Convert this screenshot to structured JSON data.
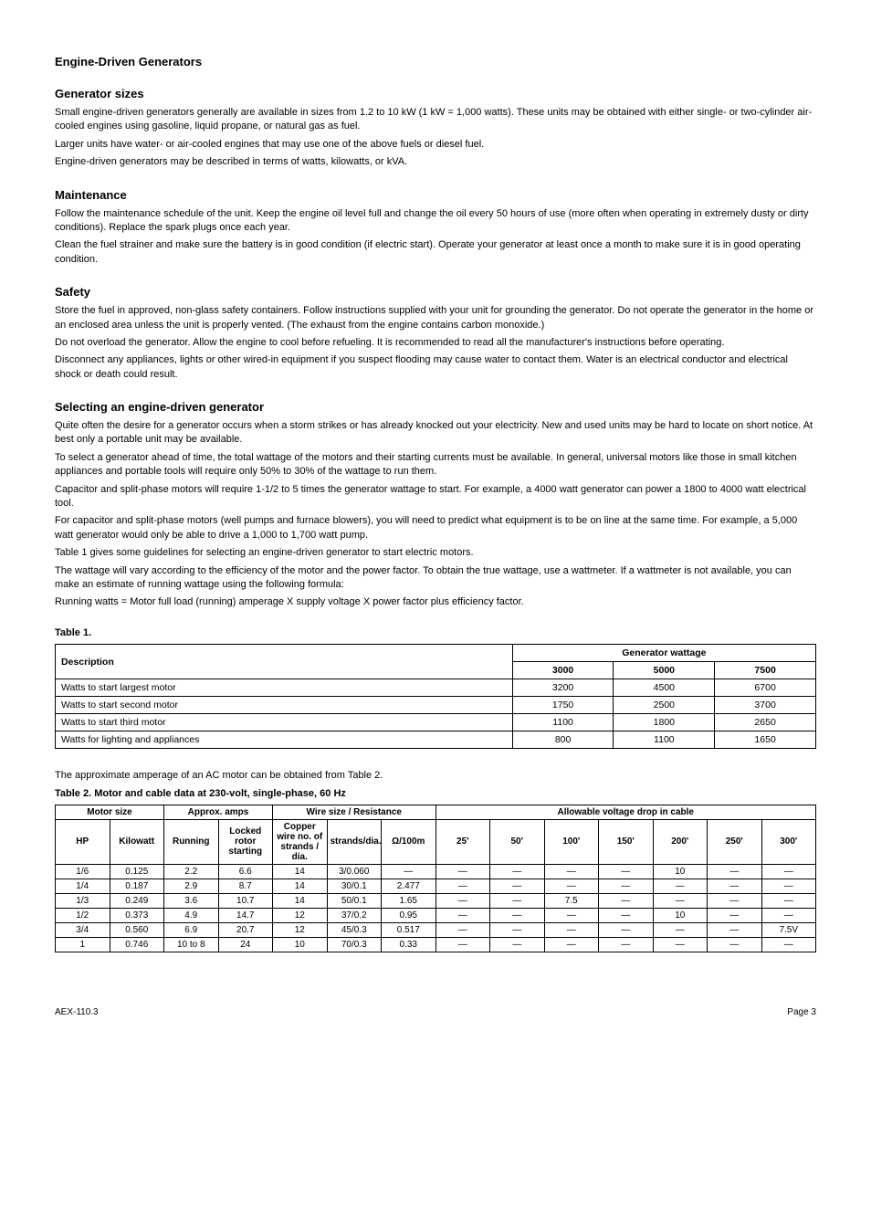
{
  "title_main": "Engine-Driven Generators",
  "section_sizes": {
    "heading": "Generator sizes",
    "p1": "Small engine-driven generators generally are available in sizes from 1.2 to 10 kW (1 kW = 1,000 watts). These units may be obtained with either single- or two-cylinder air-cooled engines using gasoline, liquid propane, or natural gas as fuel.",
    "p2": "Larger units have water- or air-cooled engines that may use one of the above fuels or diesel fuel.",
    "p3": "Engine-driven generators may be described in terms of watts, kilowatts, or kVA."
  },
  "section_maint": {
    "heading": "Maintenance",
    "p1": "Follow the maintenance schedule of the unit. Keep the engine oil level full and change the oil every 50 hours of use (more often when operating in extremely dusty or dirty conditions). Replace the spark plugs once each year.",
    "p2": "Clean the fuel strainer and make sure the battery is in good condition (if electric start). Operate your generator at least once a month to make sure it is in good operating condition."
  },
  "section_safety": {
    "heading": "Safety",
    "p1": "Store the fuel in approved, non-glass safety containers. Follow instructions supplied with your unit for grounding the generator. Do not operate the generator in the home or an enclosed area unless the unit is properly vented. (The exhaust from the engine contains carbon monoxide.)",
    "p2": "Do not overload the generator. Allow the engine to cool before refueling. It is recommended to read all the manufacturer's instructions before operating.",
    "p3": "Disconnect any appliances, lights or other wired-in equipment if you suspect flooding may cause water to contact them. Water is an electrical conductor and electrical shock or death could result."
  },
  "section_select": {
    "heading": "Selecting an engine-driven generator",
    "p1": "Quite often the desire for a generator occurs when a storm strikes or has already knocked out your electricity. New and used units may be hard to locate on short notice. At best only a portable unit may be available.",
    "p2": "To select a generator ahead of time, the total wattage of the motors and their starting currents must be available. In general, universal motors like those in small kitchen appliances and portable tools will require only 50% to 30% of the wattage to run them.",
    "p3": "Capacitor and split-phase motors will require 1-1/2 to 5 times the generator wattage to start. For example, a 4000 watt generator can power a 1800 to 4000 watt electrical tool.",
    "p4": "For capacitor and split-phase motors (well pumps and furnace blowers), you will need to predict what equipment is to be on line at the same time. For example, a 5,000 watt generator would only be able to drive a 1,000 to 1,700 watt pump.",
    "p5": "Table 1 gives some guidelines for selecting an engine-driven generator to start electric motors.",
    "p6": "The wattage will vary according to the efficiency of the motor and the power factor. To obtain the true wattage, use a wattmeter. If a wattmeter is not available, you can make an estimate of running wattage using the following formula:",
    "formula": "Running watts = Motor full load (running) amperage X supply voltage X power factor plus efficiency factor."
  },
  "table1": {
    "title": "Table 1.",
    "header_desc": "Description",
    "header_gen": "Generator wattage",
    "sub_headers": [
      "3000",
      "5000",
      "7500"
    ],
    "rows": [
      {
        "desc": "Watts to start largest motor",
        "v": [
          "3200",
          "4500",
          "6700"
        ]
      },
      {
        "desc": "Watts to start second motor",
        "v": [
          "1750",
          "2500",
          "3700"
        ]
      },
      {
        "desc": "Watts to start third motor",
        "v": [
          "1100",
          "1800",
          "2650"
        ]
      },
      {
        "desc": "Watts for lighting and appliances",
        "v": [
          "800",
          "1100",
          "1650"
        ]
      }
    ]
  },
  "table2": {
    "caption": "The approximate amperage of an AC motor can be obtained from Table 2.",
    "title": "Table 2. Motor and cable data at 230-volt, single-phase, 60 Hz",
    "main_headers": {
      "size": "Motor size",
      "amps": "Approx. amps",
      "wire": "Wire size / Resistance",
      "drop": "Allowable voltage drop in cable"
    },
    "sub1": {
      "hp": "HP",
      "w": "Kilowatt",
      "run": "Running",
      "start": "Locked rotor starting",
      "cu": "Copper wire no. of strands / dia.",
      "ohm": "Ω/100m",
      "d25": "25'",
      "d50": "50'",
      "d100": "100'",
      "d150": "150'",
      "d200": "200'",
      "d250": "250'",
      "d300": "300'"
    },
    "rows": [
      {
        "hp": "1/6",
        "kw": "0.125",
        "run": "2.2",
        "start": "6.6",
        "cu": "14",
        "st": "3/0.060",
        "ohm": "—",
        "v": [
          "—",
          "—",
          "—",
          "—",
          "10",
          "—",
          "—"
        ]
      },
      {
        "hp": "1/4",
        "kw": "0.187",
        "run": "2.9",
        "start": "8.7",
        "cu": "14",
        "st": "30/0.1",
        "ohm": "2.477",
        "v": [
          "—",
          "—",
          "—",
          "—",
          "—",
          "—",
          "—"
        ]
      },
      {
        "hp": "1/3",
        "kw": "0.249",
        "run": "3.6",
        "start": "10.7",
        "cu": "14",
        "st": "50/0.1",
        "ohm": "1.65",
        "v": [
          "—",
          "—",
          "7.5",
          "—",
          "—",
          "—",
          "—"
        ]
      },
      {
        "hp": "1/2",
        "kw": "0.373",
        "run": "4.9",
        "start": "14.7",
        "cu": "12",
        "st": "37/0.2",
        "ohm": "0.95",
        "v": [
          "—",
          "—",
          "—",
          "—",
          "10",
          "—",
          "—"
        ]
      },
      {
        "hp": "3/4",
        "kw": "0.560",
        "run": "6.9",
        "start": "20.7",
        "cu": "12",
        "st": "45/0.3",
        "ohm": "0.517",
        "v": [
          "—",
          "—",
          "—",
          "—",
          "—",
          "—",
          "7.5V"
        ]
      },
      {
        "hp": "1",
        "kw": "0.746",
        "run": "10 to 8",
        "start": "24",
        "cu": "10",
        "st": "70/0.3",
        "ohm": "0.33",
        "v": [
          "—",
          "—",
          "—",
          "—",
          "—",
          "—",
          "—"
        ]
      }
    ]
  },
  "footer": {
    "code": "AEX-110.3",
    "page": "Page 3"
  }
}
